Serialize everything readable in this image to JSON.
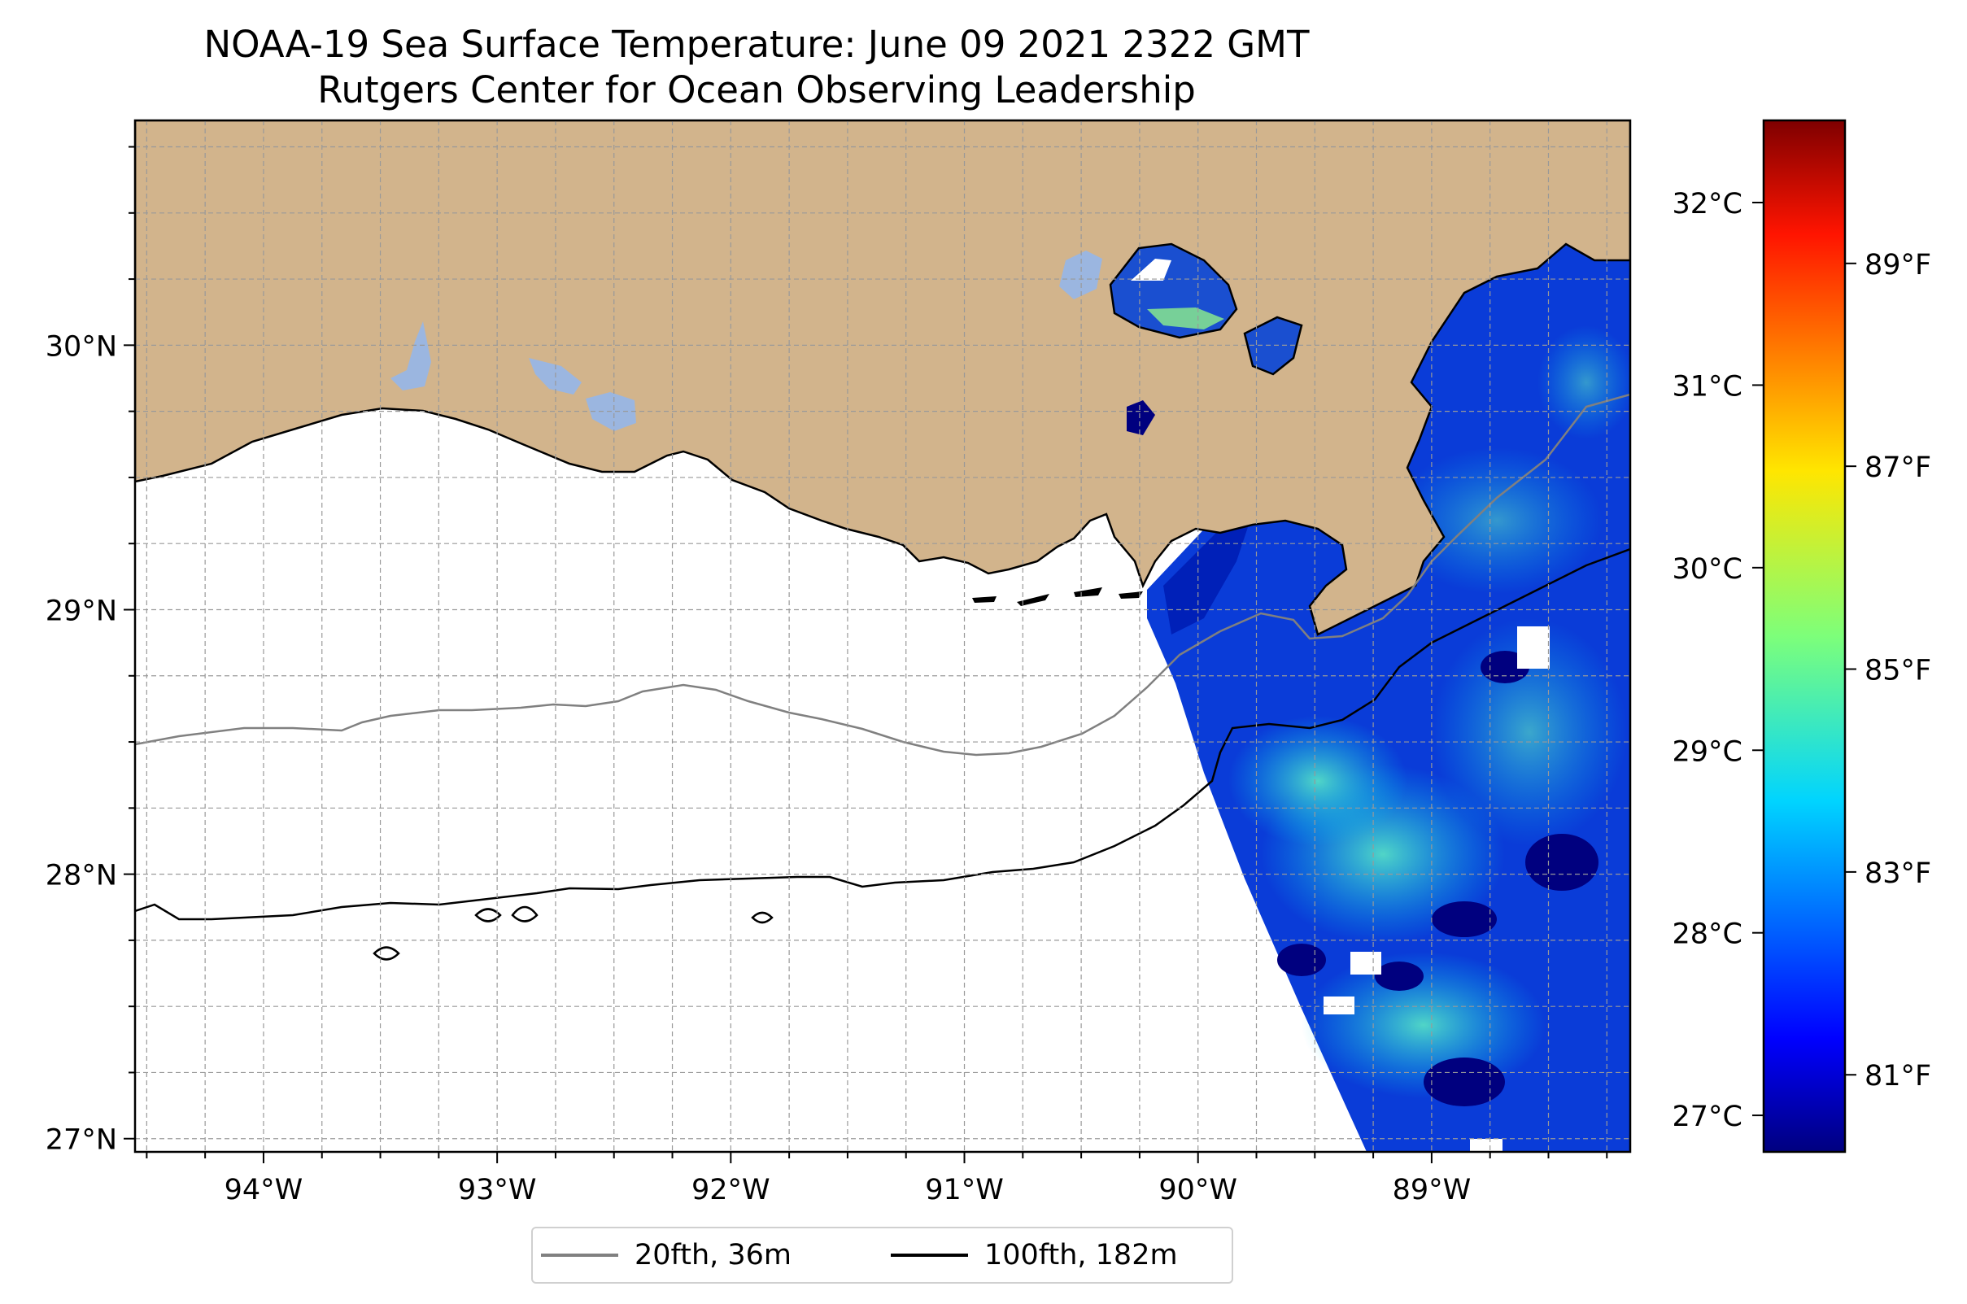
{
  "title": {
    "line1": "NOAA-19 Sea Surface Temperature: June 09 2021 2322 GMT",
    "line2": "Rutgers Center for Ocean Observing Leadership"
  },
  "map": {
    "lon_range": [
      -94.55,
      -88.15
    ],
    "lat_range": [
      26.95,
      30.85
    ],
    "lon_ticks": [
      {
        "value": -94,
        "label": "94°W"
      },
      {
        "value": -93,
        "label": "93°W"
      },
      {
        "value": -92,
        "label": "92°W"
      },
      {
        "value": -91,
        "label": "91°W"
      },
      {
        "value": -90,
        "label": "90°W"
      },
      {
        "value": -89,
        "label": "89°W"
      }
    ],
    "lat_ticks": [
      {
        "value": 30,
        "label": "30°N"
      },
      {
        "value": 29,
        "label": "29°N"
      },
      {
        "value": 28,
        "label": "28°N"
      },
      {
        "value": 27,
        "label": "27°N"
      }
    ],
    "gridlines": "dashed, every 0.25°",
    "colors": {
      "land": "#d2b48c",
      "lakes": "#9bb6e0",
      "ocean": "#ffffff",
      "coastline": "#000000",
      "isobath_20fth": "#808080",
      "isobath_100fth": "#000000"
    }
  },
  "colorbar": {
    "colormap": "jet",
    "celsius_ticks": [
      "32°C",
      "31°C",
      "30°C",
      "29°C",
      "28°C",
      "27°C"
    ],
    "fahrenheit_ticks": [
      "89°F",
      "87°F",
      "85°F",
      "83°F",
      "81°F"
    ]
  },
  "legend": {
    "items": [
      {
        "label": "20fth, 36m",
        "color": "#808080"
      },
      {
        "label": "100fth, 182m",
        "color": "#000000"
      }
    ]
  }
}
